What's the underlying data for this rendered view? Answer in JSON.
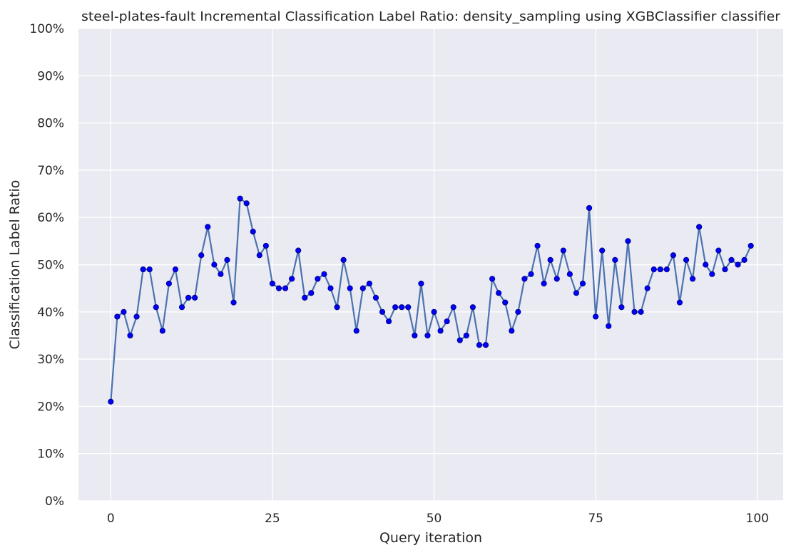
{
  "chart_data": {
    "type": "line",
    "title": "steel-plates-fault Incremental Classification Label Ratio: density_sampling using XGBClassifier classifier",
    "xlabel": "Query iteration",
    "ylabel": "Classification Label Ratio",
    "xlim": [
      -5,
      104
    ],
    "ylim": [
      0,
      100
    ],
    "x_ticks": [
      0,
      25,
      50,
      75,
      100
    ],
    "x_tick_labels": [
      "0",
      "25",
      "50",
      "75",
      "100"
    ],
    "y_ticks": [
      0,
      10,
      20,
      30,
      40,
      50,
      60,
      70,
      80,
      90,
      100
    ],
    "y_tick_labels": [
      "0%",
      "10%",
      "20%",
      "30%",
      "40%",
      "50%",
      "60%",
      "70%",
      "80%",
      "90%",
      "100%"
    ],
    "grid": true,
    "legend": "none",
    "colors": {
      "background": "#eaeaf2",
      "grid": "#ffffff",
      "line": "#4c72b0",
      "marker": "#0000ff",
      "marker_edge": "#00008b"
    },
    "series": [
      {
        "x": [
          0,
          1,
          2,
          3,
          4,
          5,
          6,
          7,
          8,
          9,
          10,
          11,
          12,
          13,
          14,
          15,
          16,
          17,
          18,
          19,
          20,
          21,
          22,
          23,
          24,
          25,
          26,
          27,
          28,
          29,
          30,
          31,
          32,
          33,
          34,
          35,
          36,
          37,
          38,
          39,
          40,
          41,
          42,
          43,
          44,
          45,
          46,
          47,
          48,
          49,
          50,
          51,
          52,
          53,
          54,
          55,
          56,
          57,
          58,
          59,
          60,
          61,
          62,
          63,
          64,
          65,
          66,
          67,
          68,
          69,
          70,
          71,
          72,
          73,
          74,
          75,
          76,
          77,
          78,
          79,
          80,
          81,
          82,
          83,
          84,
          85,
          86,
          87,
          88,
          89,
          90,
          91,
          92,
          93,
          94,
          95,
          96,
          97,
          98,
          99
        ],
        "values": [
          21,
          39,
          40,
          35,
          39,
          49,
          49,
          41,
          36,
          46,
          49,
          41,
          43,
          43,
          52,
          58,
          50,
          48,
          51,
          42,
          64,
          63,
          57,
          52,
          54,
          46,
          45,
          45,
          47,
          53,
          43,
          44,
          47,
          48,
          45,
          41,
          51,
          45,
          36,
          45,
          46,
          43,
          40,
          38,
          41,
          41,
          41,
          35,
          46,
          35,
          40,
          36,
          38,
          41,
          34,
          35,
          41,
          33,
          33,
          47,
          44,
          42,
          36,
          40,
          47,
          48,
          54,
          46,
          51,
          47,
          53,
          48,
          44,
          46,
          62,
          39,
          53,
          37,
          51,
          41,
          55,
          40,
          40,
          45,
          49,
          49,
          49,
          52,
          42,
          51,
          47,
          58,
          50,
          48,
          53,
          49,
          51,
          50,
          51,
          54
        ]
      }
    ]
  }
}
